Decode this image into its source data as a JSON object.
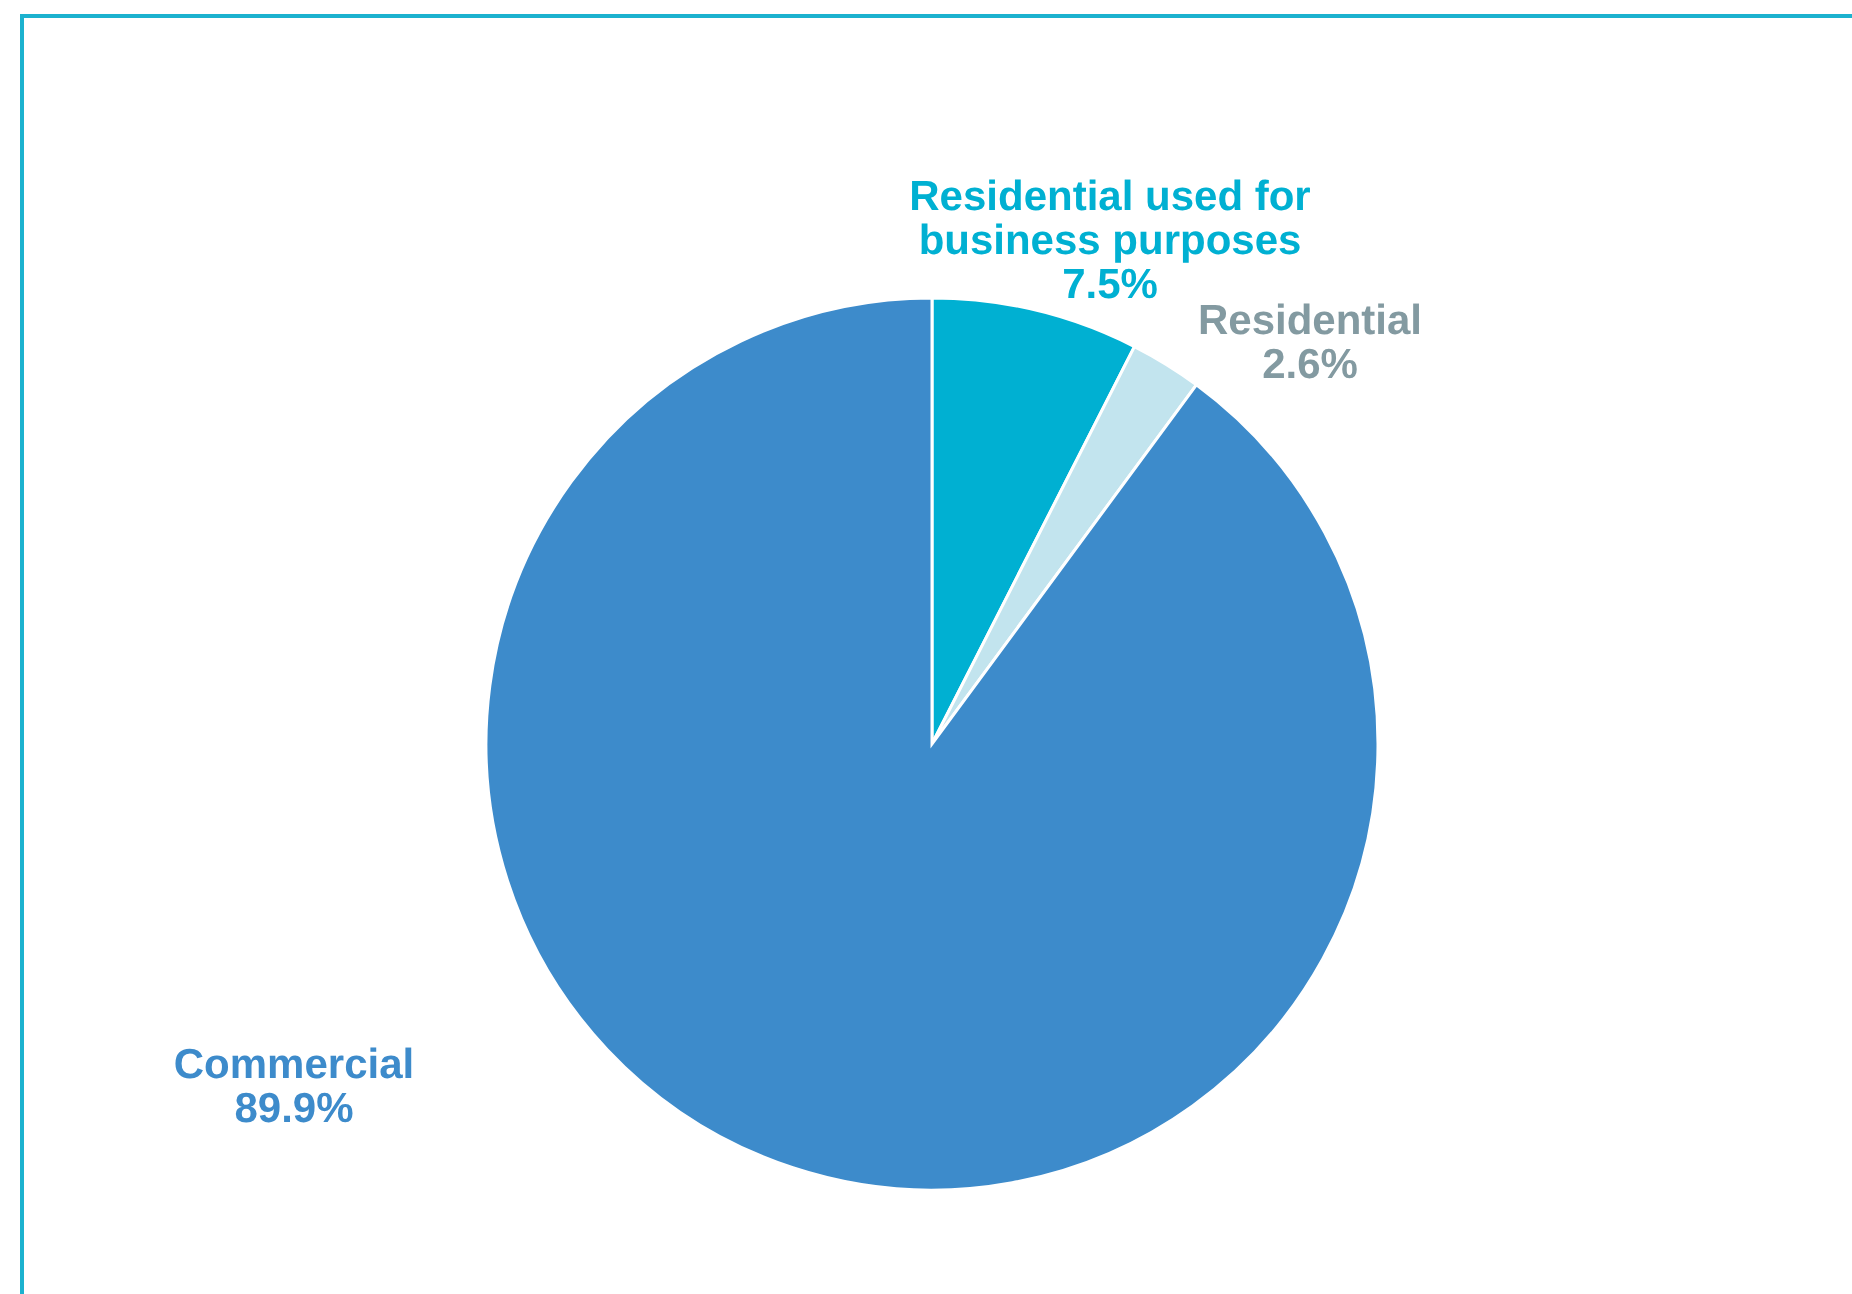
{
  "chart_data": {
    "type": "pie",
    "categories": [
      "Residential used for business purposes",
      "Residential",
      "Commercial"
    ],
    "values": [
      7.5,
      2.6,
      89.9
    ],
    "colors": [
      "#00b0d2",
      "#c2e4ee",
      "#3d8bcb"
    ],
    "value_labels": [
      "7.5%",
      "2.6%",
      "89.9%"
    ]
  }
}
